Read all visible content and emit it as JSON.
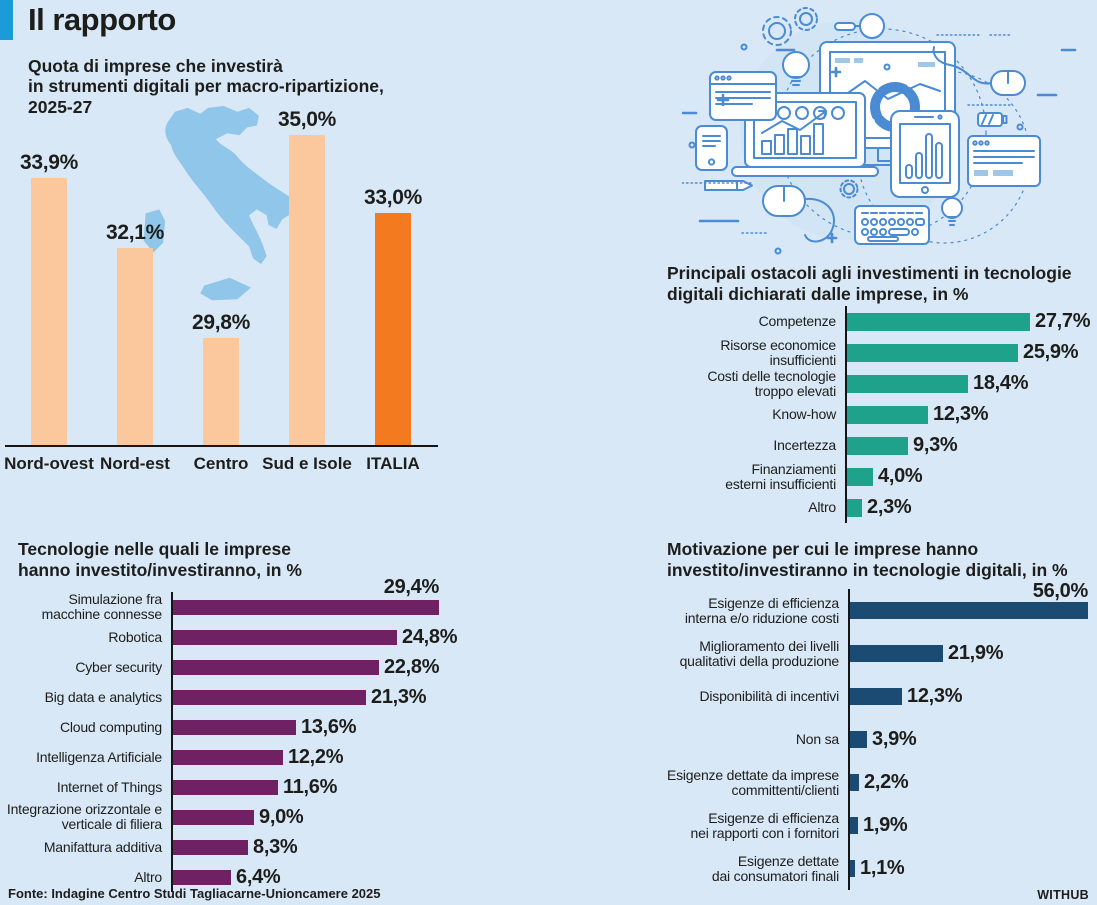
{
  "header": {
    "title": "Il rapporto"
  },
  "footer": {
    "source": "Fonte: Indagine Centro Studi Tagliacarne-Unioncamere 2025",
    "logo": "WITHUB"
  },
  "colors": {
    "background": "#d8e8f6",
    "accent_bar": "#1b9cd8",
    "text": "#1d1d1b",
    "map_fill": "#8fc6ea",
    "bar_light_orange": "#fbc89e",
    "bar_dark_orange": "#f47a20",
    "bar_teal": "#1fa28b",
    "bar_purple": "#6f2163",
    "bar_navy": "#1b4a72",
    "illustration_stroke": "#4a8bd4"
  },
  "chart_data": [
    {
      "id": "macro",
      "type": "bar",
      "title": "Quota di imprese che investirà\nin strumenti digitali per macro-ripartizione,\n2025-27",
      "categories": [
        "Nord-ovest",
        "Nord-est",
        "Centro",
        "Sud e Isole",
        "ITALIA"
      ],
      "values": [
        33.9,
        32.1,
        29.8,
        35.0,
        33.0
      ],
      "value_labels": [
        "33,9%",
        "32,1%",
        "29,8%",
        "35,0%",
        "33,0%"
      ],
      "highlight_index": 4,
      "bar_color": "#fbc89e",
      "highlight_color": "#f47a20",
      "ylim": [
        27,
        36
      ],
      "grid": false,
      "legend": "none"
    },
    {
      "id": "ostacoli",
      "type": "bar-horizontal",
      "title": "Principali ostacoli agli investimenti in tecnologie\ndigitali dichiarati dalle imprese, in %",
      "categories": [
        "Competenze",
        "Risorse economice\ninsufficienti",
        "Costi delle tecnologie\ntroppo elevati",
        "Know-how",
        "Incertezza",
        "Finanziamenti\nesterni insufficienti",
        "Altro"
      ],
      "values": [
        27.7,
        25.9,
        18.4,
        12.3,
        9.3,
        4.0,
        2.3
      ],
      "value_labels": [
        "27,7%",
        "25,9%",
        "18,4%",
        "12,3%",
        "9,3%",
        "4,0%",
        "2,3%"
      ],
      "bar_color": "#1fa28b",
      "xlim": [
        0,
        28
      ],
      "grid": false,
      "legend": "none"
    },
    {
      "id": "tecnologie",
      "type": "bar-horizontal",
      "title": "Tecnologie nelle quali le imprese\nhanno investito/investiranno, in %",
      "categories": [
        "Simulazione fra\nmacchine connesse",
        "Robotica",
        "Cyber security",
        "Big data e analytics",
        "Cloud computing",
        "Intelligenza Artificiale",
        "Internet of Things",
        "Integrazione orizzontale e\nverticale di filiera",
        "Manifattura additiva",
        "Altro"
      ],
      "values": [
        29.4,
        24.8,
        22.8,
        21.3,
        13.6,
        12.2,
        11.6,
        9.0,
        8.3,
        6.4
      ],
      "value_labels": [
        "29,4%",
        "24,8%",
        "22,8%",
        "21,3%",
        "13,6%",
        "12,2%",
        "11,6%",
        "9,0%",
        "8,3%",
        "6,4%"
      ],
      "bar_color": "#6f2163",
      "xlim": [
        0,
        30
      ],
      "grid": false,
      "legend": "none"
    },
    {
      "id": "motivazione",
      "type": "bar-horizontal",
      "title": "Motivazione per cui le imprese hanno\ninvestito/investiranno in tecnologie digitali, in %",
      "categories": [
        "Esigenze di efficienza\ninterna e/o riduzione costi",
        "Miglioramento dei livelli\nqualitativi della produzione",
        "Disponibilità di incentivi",
        "Non sa",
        "Esigenze dettate da imprese\ncommittenti/clienti",
        "Esigenze di efficienza\nnei rapporti con i fornitori",
        "Esigenze dettate\ndai consumatori finali"
      ],
      "values": [
        56.0,
        21.9,
        12.3,
        3.9,
        2.2,
        1.9,
        1.1
      ],
      "value_labels": [
        "56,0%",
        "21,9%",
        "12,3%",
        "3,9%",
        "2,2%",
        "1,9%",
        "1,1%"
      ],
      "bar_color": "#1b4a72",
      "xlim": [
        0,
        58
      ],
      "grid": false,
      "legend": "none"
    }
  ]
}
